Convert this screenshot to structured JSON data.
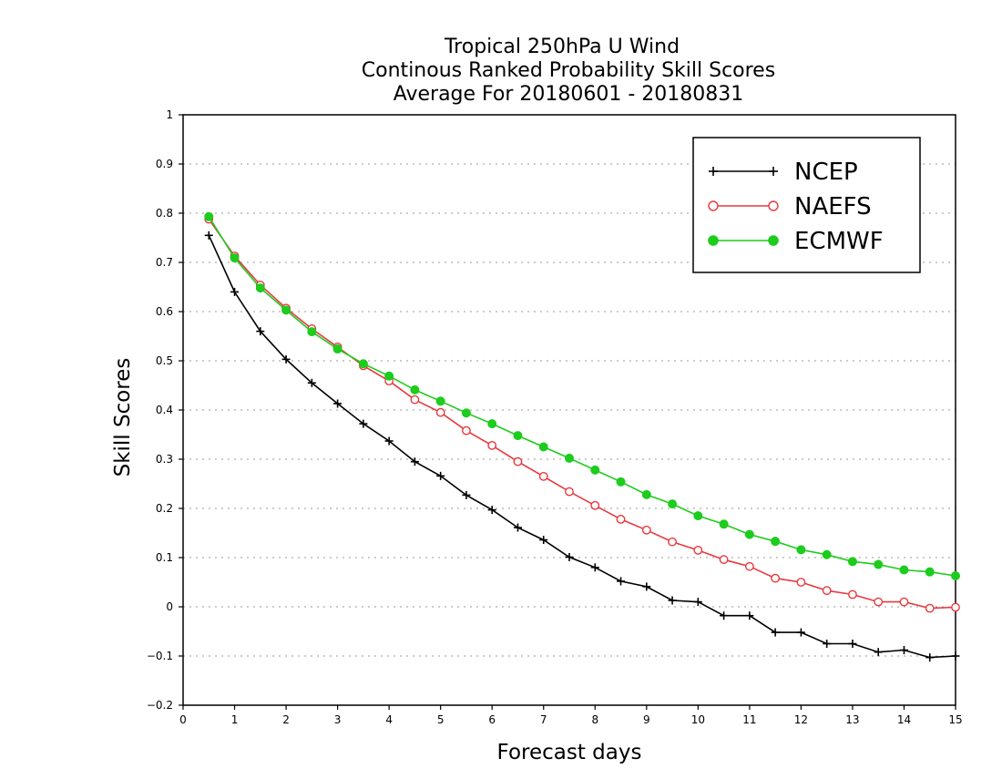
{
  "chart_data": {
    "type": "line",
    "title_lines": [
      "Tropical 250hPa U Wind",
      "Continous Ranked Probability Skill Scores",
      "Average For 20180601 - 20180831"
    ],
    "xlabel": "Forecast days",
    "ylabel": "Skill Scores",
    "xlim": [
      0,
      15
    ],
    "ylim": [
      -0.2,
      1
    ],
    "xticks": [
      0,
      1,
      2,
      3,
      4,
      5,
      6,
      7,
      8,
      9,
      10,
      11,
      12,
      13,
      14,
      15
    ],
    "xtick_labels": [
      "0",
      "1",
      "2",
      "3",
      "4",
      "5",
      "6",
      "7",
      "8",
      "9",
      "10",
      "11",
      "12",
      "13",
      "14",
      "15"
    ],
    "yticks": [
      -0.2,
      -0.1,
      0,
      0.1,
      0.2,
      0.3,
      0.4,
      0.5,
      0.6,
      0.7,
      0.8,
      0.9,
      1
    ],
    "ytick_labels": [
      "−0.2",
      "−0.1",
      "0",
      "0.1",
      "0.2",
      "0.3",
      "0.4",
      "0.5",
      "0.6",
      "0.7",
      "0.8",
      "0.9",
      "1"
    ],
    "grid": "horizontal dotted",
    "legend_position": "top-right",
    "x": [
      0.5,
      1,
      1.5,
      2,
      2.5,
      3,
      3.5,
      4,
      4.5,
      5,
      5.5,
      6,
      6.5,
      7,
      7.5,
      8,
      8.5,
      9,
      9.5,
      10,
      10.5,
      11,
      11.5,
      12,
      12.5,
      13,
      13.5,
      14,
      14.5,
      15
    ],
    "series": [
      {
        "name": "NCEP",
        "color": "#000000",
        "marker": "plus",
        "values": [
          0.755,
          0.64,
          0.56,
          0.503,
          0.455,
          0.413,
          0.372,
          0.337,
          0.295,
          0.266,
          0.227,
          0.197,
          0.161,
          0.136,
          0.101,
          0.08,
          0.052,
          0.041,
          0.013,
          0.01,
          -0.018,
          -0.018,
          -0.052,
          -0.052,
          -0.075,
          -0.075,
          -0.092,
          -0.088,
          -0.103,
          -0.1
        ]
      },
      {
        "name": "NAEFS",
        "color": "#e8383d",
        "marker": "open-circle",
        "values": [
          0.788,
          0.713,
          0.654,
          0.607,
          0.565,
          0.528,
          0.49,
          0.459,
          0.421,
          0.395,
          0.358,
          0.328,
          0.295,
          0.265,
          0.234,
          0.206,
          0.178,
          0.156,
          0.132,
          0.115,
          0.096,
          0.082,
          0.058,
          0.05,
          0.033,
          0.025,
          0.01,
          0.01,
          -0.003,
          -0.001
        ]
      },
      {
        "name": "ECMWF",
        "color": "#1dcc1d",
        "marker": "filled-circle",
        "values": [
          0.793,
          0.709,
          0.648,
          0.603,
          0.559,
          0.524,
          0.494,
          0.469,
          0.441,
          0.418,
          0.394,
          0.372,
          0.348,
          0.325,
          0.302,
          0.278,
          0.254,
          0.228,
          0.209,
          0.185,
          0.168,
          0.147,
          0.133,
          0.116,
          0.106,
          0.092,
          0.086,
          0.075,
          0.071,
          0.063
        ]
      }
    ]
  }
}
